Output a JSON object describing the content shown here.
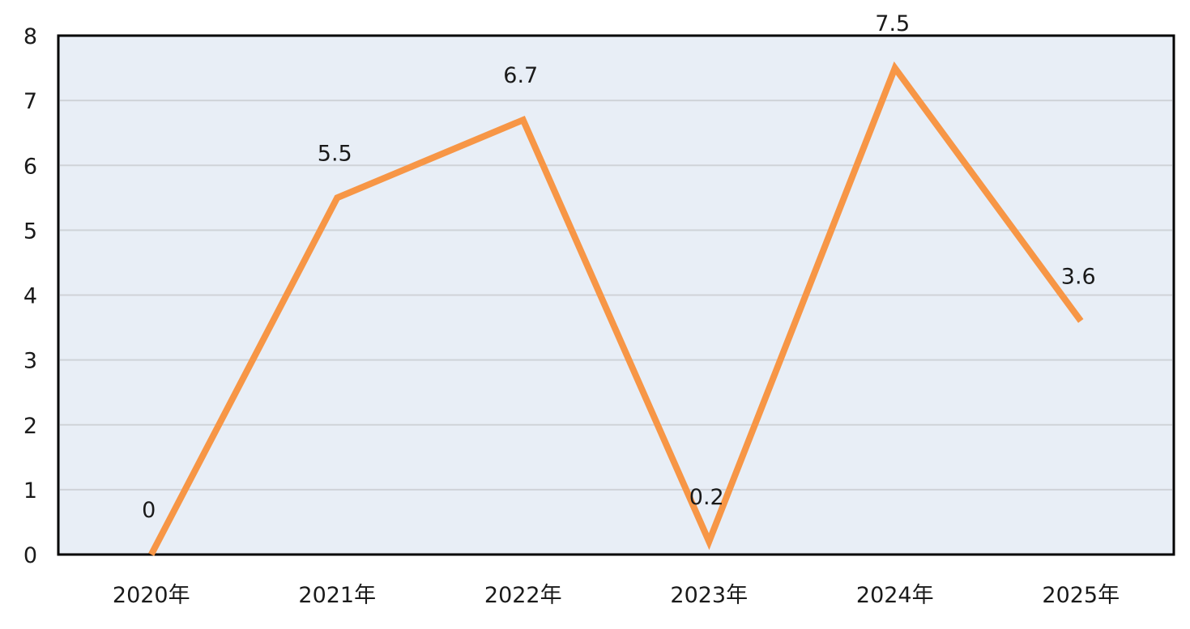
{
  "chart_data": {
    "type": "line",
    "title": "",
    "xlabel": "",
    "ylabel": "",
    "categories": [
      "2020年",
      "2021年",
      "2022年",
      "2023年",
      "2024年",
      "2025年"
    ],
    "series": [
      {
        "values": [
          0,
          5.5,
          6.7,
          0.2,
          7.5,
          3.6
        ],
        "labels": [
          "0",
          "5.5",
          "6.7",
          "0.2",
          "7.5",
          "3.6"
        ],
        "color": "#f79646"
      }
    ],
    "ylim": [
      0,
      8
    ],
    "yticks": [
      "0",
      "1",
      "2",
      "3",
      "4",
      "5",
      "6",
      "7",
      "8"
    ],
    "grid": true,
    "legend": "none",
    "plot_background": "#e8eef6"
  }
}
